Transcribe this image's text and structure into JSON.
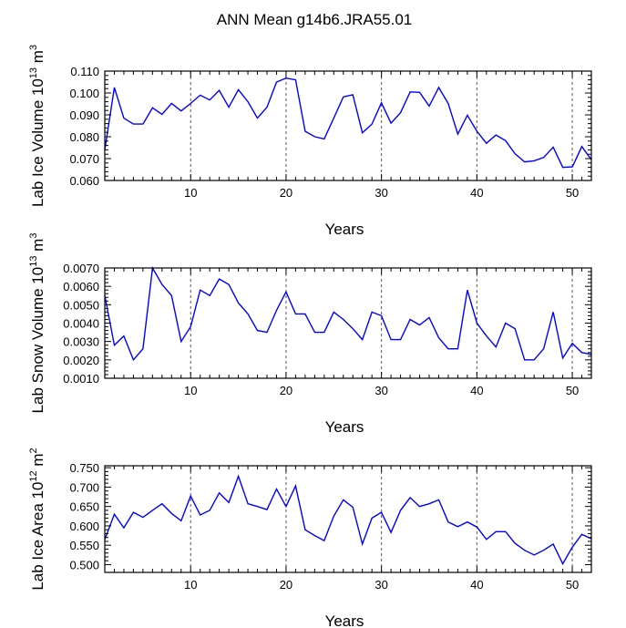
{
  "title": "ANN Mean g14b6.JRA55.01",
  "colors": {
    "line": "#0000ff",
    "axis": "#000000",
    "grid": "#555555"
  },
  "chart_data": [
    {
      "type": "line",
      "ylabel_main": "Lab Ice Volume 10",
      "ylabel_exp": "13",
      "ylabel_unit": " m",
      "ylabel_unit_exp": "3",
      "xlabel": "Years",
      "xlim": [
        1,
        52
      ],
      "ylim": [
        0.06,
        0.11
      ],
      "xticks": [
        10,
        20,
        30,
        40,
        50
      ],
      "xtick_labels": [
        "10",
        "20",
        "30",
        "40",
        "50"
      ],
      "yticks": [
        0.06,
        0.07,
        0.08,
        0.09,
        0.1,
        0.11
      ],
      "ytick_labels": [
        "0.060",
        "0.070",
        "0.080",
        "0.090",
        "0.100",
        "0.110"
      ],
      "vlines": [
        10,
        20,
        30,
        40,
        50
      ],
      "x": [
        1,
        2,
        3,
        4,
        5,
        6,
        7,
        8,
        9,
        10,
        11,
        12,
        13,
        14,
        15,
        16,
        17,
        18,
        19,
        20,
        21,
        22,
        23,
        24,
        25,
        26,
        27,
        28,
        29,
        30,
        31,
        32,
        33,
        34,
        35,
        36,
        37,
        38,
        39,
        40,
        41,
        42,
        43,
        44,
        45,
        46,
        47,
        48,
        49,
        50,
        51,
        52
      ],
      "values": [
        0.074,
        0.1025,
        0.0885,
        0.0858,
        0.0858,
        0.0932,
        0.0902,
        0.0952,
        0.0918,
        0.0952,
        0.099,
        0.0968,
        0.1012,
        0.0935,
        0.1015,
        0.096,
        0.0885,
        0.0935,
        0.105,
        0.1068,
        0.106,
        0.0825,
        0.08,
        0.079,
        0.0885,
        0.0982,
        0.0992,
        0.0818,
        0.0858,
        0.0955,
        0.0862,
        0.091,
        0.1005,
        0.1003,
        0.094,
        0.1025,
        0.0952,
        0.0812,
        0.0898,
        0.0825,
        0.077,
        0.0808,
        0.0782,
        0.0722,
        0.0685,
        0.069,
        0.0705,
        0.0752,
        0.066,
        0.0662,
        0.0755,
        0.0695
      ]
    },
    {
      "type": "line",
      "ylabel_main": "Lab Snow Volume 10",
      "ylabel_exp": "13",
      "ylabel_unit": " m",
      "ylabel_unit_exp": "3",
      "xlabel": "Years",
      "xlim": [
        1,
        52
      ],
      "ylim": [
        0.001,
        0.007
      ],
      "xticks": [
        10,
        20,
        30,
        40,
        50
      ],
      "xtick_labels": [
        "10",
        "20",
        "30",
        "40",
        "50"
      ],
      "yticks": [
        0.001,
        0.002,
        0.003,
        0.004,
        0.005,
        0.006,
        0.007
      ],
      "ytick_labels": [
        "0.0010",
        "0.0020",
        "0.0030",
        "0.0040",
        "0.0050",
        "0.0060",
        "0.0070"
      ],
      "vlines": [
        10,
        20,
        30,
        40,
        50
      ],
      "x": [
        1,
        2,
        3,
        4,
        5,
        6,
        7,
        8,
        9,
        10,
        11,
        12,
        13,
        14,
        15,
        16,
        17,
        18,
        19,
        20,
        21,
        22,
        23,
        24,
        25,
        26,
        27,
        28,
        29,
        30,
        31,
        32,
        33,
        34,
        35,
        36,
        37,
        38,
        39,
        40,
        41,
        42,
        43,
        44,
        45,
        46,
        47,
        48,
        49,
        50,
        51,
        52
      ],
      "values": [
        0.0055,
        0.0028,
        0.0033,
        0.002,
        0.0026,
        0.007,
        0.0061,
        0.0055,
        0.003,
        0.0038,
        0.0058,
        0.0055,
        0.0064,
        0.0061,
        0.0051,
        0.0045,
        0.0036,
        0.0035,
        0.0047,
        0.0057,
        0.0045,
        0.0045,
        0.0035,
        0.0035,
        0.0046,
        0.0042,
        0.0037,
        0.0031,
        0.0046,
        0.0044,
        0.0031,
        0.0031,
        0.0042,
        0.0039,
        0.0043,
        0.0032,
        0.0026,
        0.0026,
        0.0058,
        0.004,
        0.0033,
        0.0027,
        0.004,
        0.0037,
        0.002,
        0.002,
        0.0026,
        0.0046,
        0.0021,
        0.0029,
        0.0024,
        0.0023
      ]
    },
    {
      "type": "line",
      "ylabel_main": "Lab Ice Area 10",
      "ylabel_exp": "12",
      "ylabel_unit": " m",
      "ylabel_unit_exp": "2",
      "xlabel": "Years",
      "xlim": [
        1,
        52
      ],
      "ylim": [
        0.48,
        0.755
      ],
      "xticks": [
        10,
        20,
        30,
        40,
        50
      ],
      "xtick_labels": [
        "10",
        "20",
        "30",
        "40",
        "50"
      ],
      "yticks": [
        0.5,
        0.55,
        0.6,
        0.65,
        0.7,
        0.75
      ],
      "ytick_labels": [
        "0.500",
        "0.550",
        "0.600",
        "0.650",
        "0.700",
        "0.750"
      ],
      "vlines": [
        10,
        20,
        30,
        40,
        50
      ],
      "x": [
        1,
        2,
        3,
        4,
        5,
        6,
        7,
        8,
        9,
        10,
        11,
        12,
        13,
        14,
        15,
        16,
        17,
        18,
        19,
        20,
        21,
        22,
        23,
        24,
        25,
        26,
        27,
        28,
        29,
        30,
        31,
        32,
        33,
        34,
        35,
        36,
        37,
        38,
        39,
        40,
        41,
        42,
        43,
        44,
        45,
        46,
        47,
        48,
        49,
        50,
        51,
        52
      ],
      "values": [
        0.565,
        0.63,
        0.595,
        0.635,
        0.622,
        0.64,
        0.657,
        0.632,
        0.613,
        0.677,
        0.628,
        0.64,
        0.685,
        0.66,
        0.728,
        0.657,
        0.65,
        0.642,
        0.695,
        0.65,
        0.703,
        0.59,
        0.575,
        0.562,
        0.625,
        0.667,
        0.648,
        0.553,
        0.62,
        0.635,
        0.583,
        0.64,
        0.673,
        0.65,
        0.657,
        0.667,
        0.61,
        0.598,
        0.61,
        0.597,
        0.565,
        0.585,
        0.585,
        0.555,
        0.537,
        0.525,
        0.537,
        0.553,
        0.502,
        0.545,
        0.578,
        0.567
      ]
    }
  ]
}
